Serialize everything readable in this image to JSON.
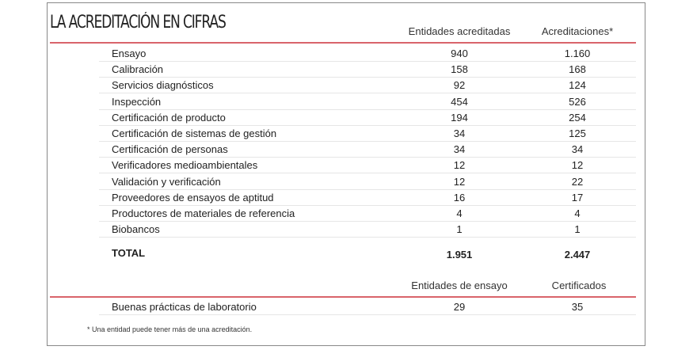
{
  "title": "LA ACREDITACIÓN EN CIFRAS",
  "headers": {
    "entities": "Entidades acreditadas",
    "accreditations": "Acreditaciones*"
  },
  "rows": [
    {
      "label": "Ensayo",
      "entities": "940",
      "accreditations": "1.160"
    },
    {
      "label": "Calibración",
      "entities": "158",
      "accreditations": "168"
    },
    {
      "label": "Servicios diagnósticos",
      "entities": "92",
      "accreditations": "124"
    },
    {
      "label": "Inspección",
      "entities": "454",
      "accreditations": "526"
    },
    {
      "label": "Certificación de producto",
      "entities": "194",
      "accreditations": "254"
    },
    {
      "label": "Certificación de sistemas de gestión",
      "entities": "34",
      "accreditations": "125"
    },
    {
      "label": "Certificación de personas",
      "entities": "34",
      "accreditations": "34"
    },
    {
      "label": "Verificadores medioambientales",
      "entities": "12",
      "accreditations": "12"
    },
    {
      "label": "Validación y verificación",
      "entities": "12",
      "accreditations": "22"
    },
    {
      "label": "Proveedores de ensayos de aptitud",
      "entities": "16",
      "accreditations": "17"
    },
    {
      "label": "Productores de materiales de referencia",
      "entities": "4",
      "accreditations": "4"
    },
    {
      "label": "Biobancos",
      "entities": "1",
      "accreditations": "1"
    }
  ],
  "total": {
    "label": "TOTAL",
    "entities": "1.951",
    "accreditations": "2.447"
  },
  "glp": {
    "header_entities": "Entidades de ensayo",
    "header_certificates": "Certificados",
    "label": "Buenas prácticas de laboratorio",
    "entities": "29",
    "certificates": "35"
  },
  "footnote": "* Una entidad puede tener más de una acreditación.",
  "colors": {
    "accent": "#d9646b"
  }
}
